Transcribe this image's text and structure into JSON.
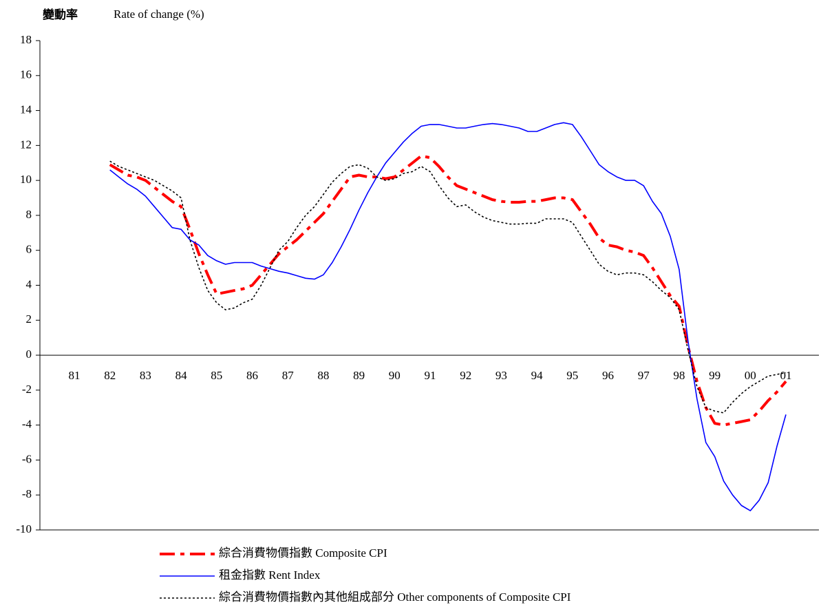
{
  "chart_data": {
    "type": "line",
    "title": "變動率",
    "y_label": "Rate of change (%)",
    "categories": [
      "81",
      null,
      null,
      null,
      "82",
      null,
      null,
      null,
      "83",
      null,
      null,
      null,
      "84",
      null,
      null,
      null,
      "85",
      null,
      null,
      null,
      "86",
      null,
      null,
      null,
      "87",
      null,
      null,
      null,
      "88",
      null,
      null,
      null,
      "89",
      null,
      null,
      null,
      "90",
      null,
      null,
      null,
      "91",
      null,
      null,
      null,
      "92",
      null,
      null,
      null,
      "93",
      null,
      null,
      null,
      "94",
      null,
      null,
      null,
      "95",
      null,
      null,
      null,
      "96",
      null,
      null,
      null,
      "97",
      null,
      null,
      null,
      "98",
      null,
      null,
      null,
      "99",
      null,
      null,
      null,
      "00",
      null,
      null,
      null,
      "01"
    ],
    "series": [
      {
        "name": "綜合消費物價指數 Composite CPI",
        "color": "#ff0000",
        "style": "dashdot",
        "values": [
          null,
          null,
          null,
          null,
          10.9,
          10.6,
          10.3,
          10.2,
          10.0,
          9.6,
          9.2,
          8.8,
          8.5,
          7.2,
          5.8,
          4.6,
          3.5,
          3.6,
          3.7,
          3.8,
          4.0,
          4.6,
          5.2,
          5.8,
          6.2,
          6.6,
          7.1,
          7.6,
          8.1,
          8.8,
          9.5,
          10.2,
          10.3,
          10.2,
          10.2,
          10.1,
          10.2,
          10.6,
          11.0,
          11.4,
          11.3,
          10.8,
          10.2,
          9.7,
          9.5,
          9.3,
          9.1,
          8.9,
          8.8,
          8.75,
          8.75,
          8.8,
          8.8,
          8.9,
          9.0,
          9.0,
          8.9,
          8.2,
          7.5,
          6.7,
          6.3,
          6.2,
          6.0,
          5.9,
          5.7,
          5.0,
          4.2,
          3.4,
          2.8,
          0.5,
          -1.5,
          -3.0,
          -3.9,
          -4.0,
          -3.9,
          -3.8,
          -3.7,
          -3.2,
          -2.6,
          -2.1,
          -1.5
        ]
      },
      {
        "name": "租金指數 Rent Index",
        "color": "#0000ff",
        "style": "solid",
        "values": [
          null,
          null,
          null,
          null,
          10.6,
          10.2,
          9.8,
          9.5,
          9.1,
          8.5,
          7.9,
          7.3,
          7.2,
          6.6,
          6.3,
          5.7,
          5.4,
          5.2,
          5.3,
          5.3,
          5.3,
          5.1,
          4.95,
          4.8,
          4.7,
          4.55,
          4.4,
          4.35,
          4.6,
          5.3,
          6.2,
          7.2,
          8.3,
          9.3,
          10.2,
          11.0,
          11.6,
          12.2,
          12.7,
          13.1,
          13.2,
          13.2,
          13.1,
          13.0,
          13.0,
          13.1,
          13.2,
          13.25,
          13.2,
          13.1,
          13.0,
          12.8,
          12.8,
          13.0,
          13.2,
          13.3,
          13.2,
          12.5,
          11.7,
          10.9,
          10.5,
          10.2,
          10.0,
          10.0,
          9.7,
          8.8,
          8.1,
          6.8,
          4.9,
          0.8,
          -2.5,
          -5.0,
          -5.8,
          -7.2,
          -8.0,
          -8.6,
          -8.9,
          -8.3,
          -7.3,
          -5.2,
          -3.4
        ]
      },
      {
        "name": "綜合消費物價指數內其他組成部分 Other components of Composite CPI",
        "color": "#000000",
        "style": "dotted",
        "values": [
          null,
          null,
          null,
          null,
          11.1,
          10.8,
          10.6,
          10.4,
          10.2,
          10.0,
          9.7,
          9.4,
          9.0,
          6.6,
          5.0,
          3.7,
          3.0,
          2.6,
          2.7,
          3.0,
          3.2,
          4.0,
          5.0,
          6.0,
          6.5,
          7.3,
          8.0,
          8.5,
          9.2,
          9.9,
          10.4,
          10.8,
          10.9,
          10.7,
          10.2,
          10.0,
          10.1,
          10.4,
          10.5,
          10.8,
          10.5,
          9.7,
          9.0,
          8.5,
          8.6,
          8.2,
          7.9,
          7.7,
          7.6,
          7.5,
          7.5,
          7.55,
          7.55,
          7.8,
          7.8,
          7.8,
          7.6,
          6.8,
          6.0,
          5.2,
          4.8,
          4.6,
          4.7,
          4.7,
          4.6,
          4.2,
          3.7,
          3.3,
          2.6,
          0.3,
          -1.8,
          -3.0,
          -3.2,
          -3.3,
          -2.7,
          -2.2,
          -1.8,
          -1.5,
          -1.2,
          -1.1,
          -1.0
        ]
      }
    ],
    "ylim": [
      -10,
      18
    ],
    "yticks": [
      -10,
      -8,
      -6,
      -4,
      -2,
      0,
      2,
      4,
      6,
      8,
      10,
      12,
      14,
      16,
      18
    ],
    "legend": "bottom"
  }
}
